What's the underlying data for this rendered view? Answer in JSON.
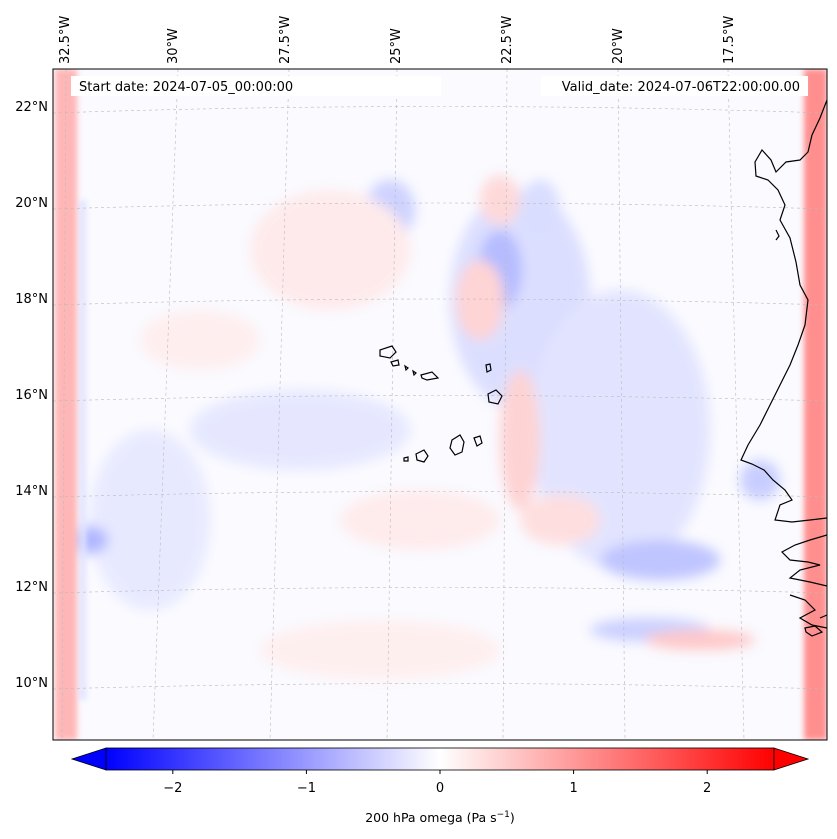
{
  "header": {
    "start_date": "Start date: 2024-07-05_00:00:00",
    "valid_date": "Valid_date: 2024-07-06T22:00:00.00"
  },
  "map": {
    "longitude_labels": [
      "32.5°W",
      "30°W",
      "27.5°W",
      "25°W",
      "22.5°W",
      "20°W",
      "17.5°W"
    ],
    "latitude_labels": [
      "22°N",
      "20°N",
      "18°N",
      "16°N",
      "14°N",
      "12°N",
      "10°N"
    ],
    "field": "200 hPa omega",
    "colormap": "bwr",
    "color_min": "#0000ff",
    "color_mid": "#ffffff",
    "color_max": "#ff0000",
    "coastline_color": "#000000"
  },
  "colorbar": {
    "label": "200 hPa omega (Pa s",
    "label_exponent": "−1",
    "label_suffix": ")",
    "ticks": [
      "−2",
      "−1",
      "0",
      "1",
      "2"
    ],
    "tick_values": [
      -2,
      -1,
      0,
      1,
      2
    ],
    "range": [
      -2.5,
      2.5
    ],
    "extend": "both"
  }
}
